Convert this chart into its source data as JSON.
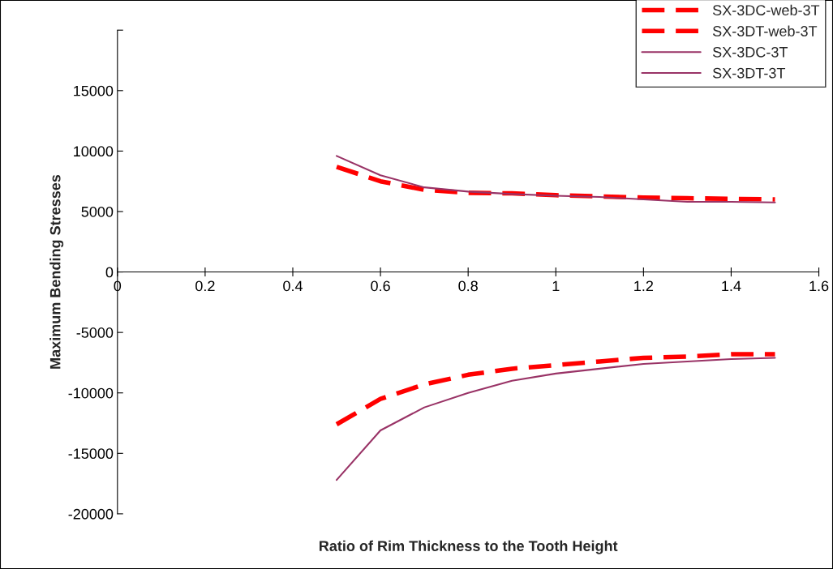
{
  "chart_data": {
    "type": "line",
    "xlabel": "Ratio of Rim Thickness to the Tooth Height",
    "ylabel": "Maximum Bending Stresses",
    "x": [
      0.5,
      0.6,
      0.7,
      0.8,
      0.9,
      1.0,
      1.1,
      1.2,
      1.3,
      1.4,
      1.5
    ],
    "series": [
      {
        "name": "SX-3DC-web-3T",
        "color": "#ff0000",
        "line_style": "dashed",
        "values": [
          -12600,
          -10500,
          -9300,
          -8500,
          -8000,
          -7700,
          -7400,
          -7100,
          -7000,
          -6800,
          -6800
        ]
      },
      {
        "name": "SX-3DT-web-3T",
        "color": "#ff0000",
        "line_style": "dashed",
        "values": [
          8700,
          7500,
          6800,
          6550,
          6500,
          6350,
          6250,
          6150,
          6100,
          6050,
          6000
        ]
      },
      {
        "name": "SX-3DC-3T",
        "color": "#993366",
        "line_style": "solid",
        "values": [
          -17200,
          -13100,
          -11200,
          -10000,
          -9000,
          -8400,
          -8000,
          -7600,
          -7400,
          -7200,
          -7100
        ]
      },
      {
        "name": "SX-3DT-3T",
        "color": "#993366",
        "line_style": "solid",
        "values": [
          9600,
          8000,
          7000,
          6650,
          6450,
          6300,
          6200,
          6000,
          5800,
          5800,
          5750
        ]
      }
    ],
    "xlim": [
      0,
      1.6
    ],
    "xticks": [
      0,
      0.2,
      0.4,
      0.6,
      0.8,
      1,
      1.2,
      1.4,
      1.6
    ],
    "ylim": [
      -20000,
      20000
    ],
    "yticks": [
      -20000,
      -15000,
      -10000,
      -5000,
      0,
      5000,
      10000,
      15000,
      {
        "value": 20000,
        "label": null
      }
    ],
    "grid": false,
    "legend": "top right",
    "marker": "none"
  }
}
